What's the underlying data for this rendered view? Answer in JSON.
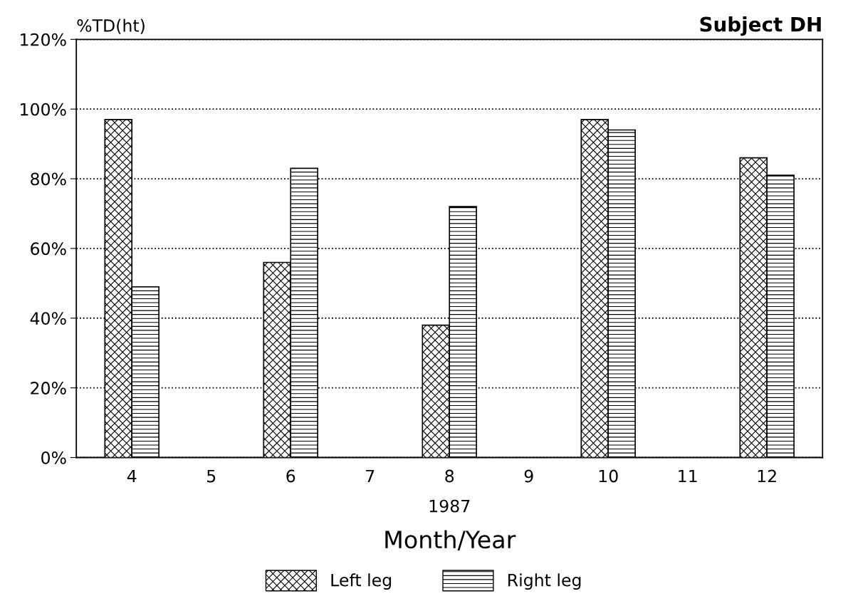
{
  "chart_data": {
    "type": "bar",
    "title": "Subject DH",
    "xlabel": "Month/Year",
    "ylabel": "%TD(ht)",
    "categories": [
      "4",
      "5",
      "6",
      "7",
      "8",
      "9",
      "10",
      "11",
      "12"
    ],
    "series": [
      {
        "name": "Left leg",
        "color": "#000000",
        "values": [
          97,
          null,
          56,
          null,
          38,
          null,
          97,
          null,
          86
        ]
      },
      {
        "name": "Right leg",
        "color": "#000000",
        "values": [
          49,
          null,
          83,
          null,
          72,
          null,
          94,
          null,
          81
        ]
      }
    ],
    "ylim": [
      0,
      120
    ],
    "yticks": [
      {
        "value": 0,
        "label": "0%"
      },
      {
        "value": 20,
        "label": "20%"
      },
      {
        "value": 40,
        "label": "40%"
      },
      {
        "value": 60,
        "label": "60%"
      },
      {
        "value": 80,
        "label": "80%"
      },
      {
        "value": 100,
        "label": "100%"
      },
      {
        "value": 120,
        "label": "120%"
      }
    ],
    "grid": "y",
    "line_style": "dotted",
    "legend": "bottom",
    "annotations": [
      "1987"
    ]
  }
}
